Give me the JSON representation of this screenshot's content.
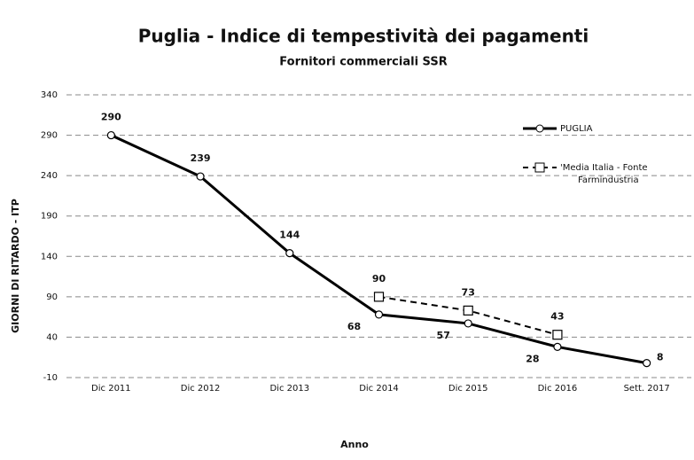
{
  "chart_data": {
    "type": "line",
    "title": "Puglia - Indice di tempestività dei pagamenti",
    "subtitle": "Fornitori commerciali SSR",
    "x_label": "Anno",
    "y_label": "GIORNI DI RITARDO - ITP",
    "categories": [
      "Dic 2011",
      "Dic 2012",
      "Dic 2013",
      "Dic 2014",
      "Dic 2015",
      "Dic 2016",
      "Sett. 2017"
    ],
    "series": [
      {
        "name": "PUGLIA",
        "color": "#000000",
        "marker": "circle",
        "dashed": false,
        "values": [
          290,
          239,
          144,
          68,
          57,
          28,
          8
        ]
      },
      {
        "name": "'Media Italia - Fonte Farmindustria",
        "color": "#000000",
        "marker": "square",
        "dashed": true,
        "values": [
          null,
          null,
          null,
          90,
          73,
          43,
          null
        ]
      }
    ],
    "ylim": [
      -10,
      340
    ],
    "yticks": [
      -10,
      40,
      90,
      140,
      190,
      240,
      290,
      340
    ],
    "grid": true,
    "legend": "upper right"
  }
}
